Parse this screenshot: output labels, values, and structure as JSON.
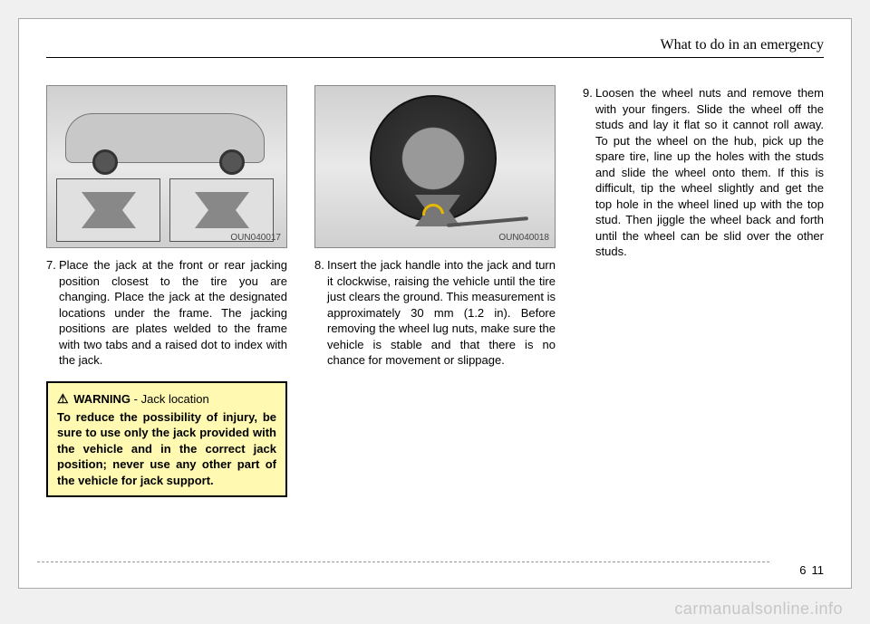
{
  "header": {
    "section_title": "What to do in an emergency"
  },
  "figures": {
    "fig1": {
      "code": "OUN040017"
    },
    "fig2": {
      "code": "OUN040018"
    }
  },
  "steps": {
    "s7": {
      "num": "7.",
      "text": "Place the jack at the front or rear jacking position closest to the tire you are changing. Place the jack at the designated locations under the frame. The jacking positions are plates welded to the frame with two tabs and a raised dot to index with the jack."
    },
    "s8": {
      "num": "8.",
      "text": "Insert the jack handle into the jack and turn it clockwise, raising the vehicle until the tire just clears the ground. This measurement is approximately 30 mm (1.2 in). Before removing the wheel lug nuts, make sure the vehicle is stable and that there is no chance for movement or slippage."
    },
    "s9": {
      "num": "9.",
      "text": "Loosen the wheel nuts and remove them with your fingers. Slide the wheel off the studs and lay it flat so it cannot roll away.  To put the wheel on the hub, pick up the spare tire, line up the holes with the studs and slide the wheel onto them. If this is difficult, tip the wheel slightly and get the top hole in the wheel lined up with the top stud. Then jiggle the wheel back and forth until the wheel can be slid over the other studs."
    }
  },
  "warning": {
    "heading": "WARNING",
    "subject": "- Jack location",
    "body": "To reduce the possibility of injury, be sure to use only the jack provided with the vehicle and in the correct jack position; never use any other part of the vehicle for jack support."
  },
  "pagenum": {
    "chapter": "6",
    "page": "11"
  },
  "watermark": "carmanualsonline.info"
}
